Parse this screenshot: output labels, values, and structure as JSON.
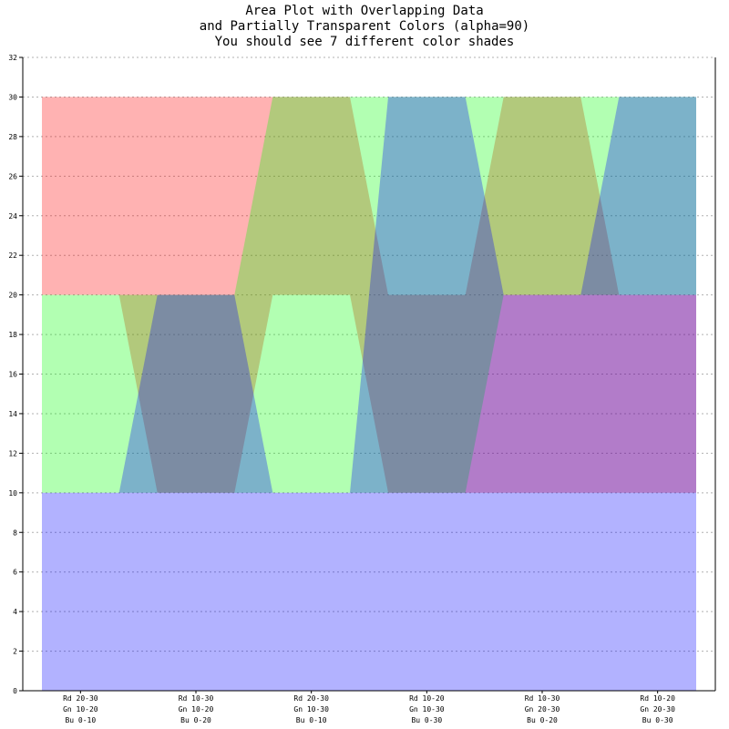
{
  "chart_data": {
    "type": "area",
    "title_lines": [
      "Area Plot with Overlapping Data",
      "and Partially Transparent Colors (alpha=90)",
      "You should see 7 different color shades"
    ],
    "categories": [
      [
        "Rd 20-30",
        "Gn 10-20",
        "Bu 0-10"
      ],
      [
        "Rd 10-30",
        "Gn 10-20",
        "Bu 0-20"
      ],
      [
        "Rd 20-30",
        "Gn 10-30",
        "Bu 0-10"
      ],
      [
        "Rd 10-20",
        "Gn 10-30",
        "Bu 0-30"
      ],
      [
        "Rd 10-30",
        "Gn 20-30",
        "Bu 0-20"
      ],
      [
        "Rd 10-20",
        "Gn 20-30",
        "Bu 0-30"
      ]
    ],
    "ylim": [
      0,
      32
    ],
    "yticks": [
      0,
      2,
      4,
      6,
      8,
      10,
      12,
      14,
      16,
      18,
      20,
      22,
      24,
      26,
      28,
      30,
      32
    ],
    "grid": true,
    "series": [
      {
        "color": "#ff0000",
        "lower": [
          20,
          10,
          20,
          10,
          10,
          10
        ],
        "upper": [
          30,
          30,
          30,
          20,
          30,
          20
        ]
      },
      {
        "color": "#00ff00",
        "lower": [
          10,
          10,
          10,
          10,
          20,
          20
        ],
        "upper": [
          20,
          20,
          30,
          30,
          30,
          30
        ]
      },
      {
        "color": "#0000ff",
        "lower": [
          0,
          0,
          0,
          0,
          0,
          0
        ],
        "upper": [
          10,
          20,
          10,
          30,
          20,
          30
        ]
      }
    ]
  }
}
